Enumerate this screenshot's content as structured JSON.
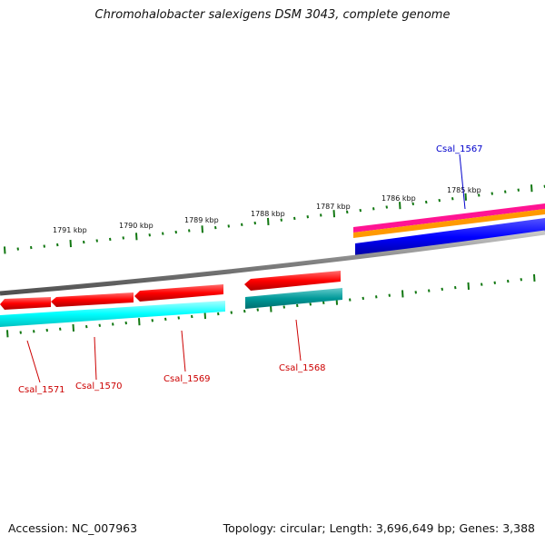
{
  "title": "Chromohalobacter salexigens DSM 3043, complete genome",
  "footer": {
    "accession": "Accession: NC_007963",
    "stats": "Topology: circular; Length: 3,696,649 bp; Genes: 3,388"
  },
  "scale_ticks": [
    {
      "label": "1785 kbp"
    },
    {
      "label": "1786 kbp"
    },
    {
      "label": "1787 kbp"
    },
    {
      "label": "1788 kbp"
    },
    {
      "label": "1789 kbp"
    },
    {
      "label": "1790 kbp"
    },
    {
      "label": "1791 kbp"
    }
  ],
  "gene_labels": {
    "Csal_1567": "Csal_1567",
    "Csal_1568": "Csal_1568",
    "Csal_1569": "Csal_1569",
    "Csal_1570": "Csal_1570",
    "Csal_1571": "Csal_1571"
  },
  "colors": {
    "reverse_cds": "#ff0000",
    "reverse_gene": "#00ffff",
    "forward_cds": "#0000ff",
    "rna": "#ff1493",
    "orange_track": "#ff9900",
    "backbone": "#808080",
    "tick": "#117711",
    "label_red": "#cc0000",
    "label_blue": "#0000cc"
  }
}
